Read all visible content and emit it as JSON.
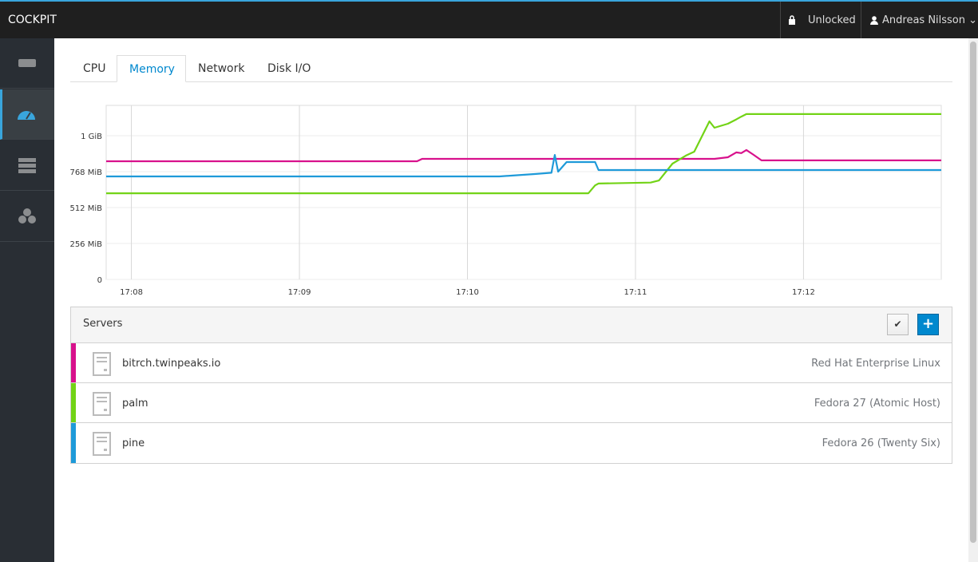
{
  "header": {
    "brand": "COCKPIT",
    "lock": "Unlocked",
    "user": "Andreas Nilsson"
  },
  "tabs": [
    "CPU",
    "Memory",
    "Network",
    "Disk I/O"
  ],
  "active_tab": 1,
  "chart": {
    "type": "line",
    "x": [
      7.85,
      9.7,
      9.73,
      10.19,
      10.4,
      10.5,
      10.52,
      10.54,
      10.59,
      10.72,
      10.76,
      10.78,
      11.09,
      11.14,
      11.22,
      11.3,
      11.35,
      11.44,
      11.47,
      11.55,
      11.6,
      11.63,
      11.66,
      11.7,
      11.75,
      12.82
    ],
    "series": [
      {
        "color": "#d8118c",
        "values": [
          842,
          842,
          859,
          859,
          859,
          859,
          859,
          859,
          859,
          859,
          859,
          859,
          859,
          859,
          859,
          859,
          859,
          859,
          859,
          870,
          905,
          900,
          922,
          890,
          848,
          848
        ]
      },
      {
        "color": "#72d316",
        "values": [
          614,
          614,
          614,
          614,
          614,
          614,
          614,
          614,
          614,
          614,
          670,
          683,
          690,
          705,
          825,
          882,
          910,
          1126,
          1081,
          1109,
          1140,
          1160,
          1178,
          1178,
          1178,
          1178
        ]
      },
      {
        "color": "#1e9ad9",
        "values": [
          734,
          734,
          734,
          734,
          751,
          760,
          887,
          768,
          836,
          836,
          836,
          779,
          779,
          779,
          779,
          779,
          779,
          779,
          779,
          779,
          779,
          779,
          779,
          779,
          779,
          779
        ]
      }
    ],
    "xlim": [
      7.85,
      12.82
    ],
    "xticks": [
      {
        "value": 8,
        "label": "17:08"
      },
      {
        "value": 9,
        "label": "17:09"
      },
      {
        "value": 10,
        "label": "17:10"
      },
      {
        "value": 11,
        "label": "17:11"
      },
      {
        "value": 12,
        "label": "17:12"
      }
    ],
    "ylim": [
      0,
      1240
    ],
    "yticks": [
      0,
      {
        "value": 256,
        "label": "256 MiB"
      },
      {
        "value": 512,
        "label": "512 MiB"
      },
      {
        "value": 768,
        "label": "768 MiB"
      },
      {
        "value": 1024,
        "label": "1 GiB"
      }
    ],
    "grid": true
  },
  "servers_panel": {
    "title": "Servers",
    "servers": [
      {
        "name": "bitrch.twinpeaks.io",
        "os": "Red Hat Enterprise Linux"
      },
      {
        "name": "palm",
        "os": "Fedora 27 (Atomic Host)"
      },
      {
        "name": "pine",
        "os": "Fedora 26 (Twenty Six)"
      }
    ]
  }
}
